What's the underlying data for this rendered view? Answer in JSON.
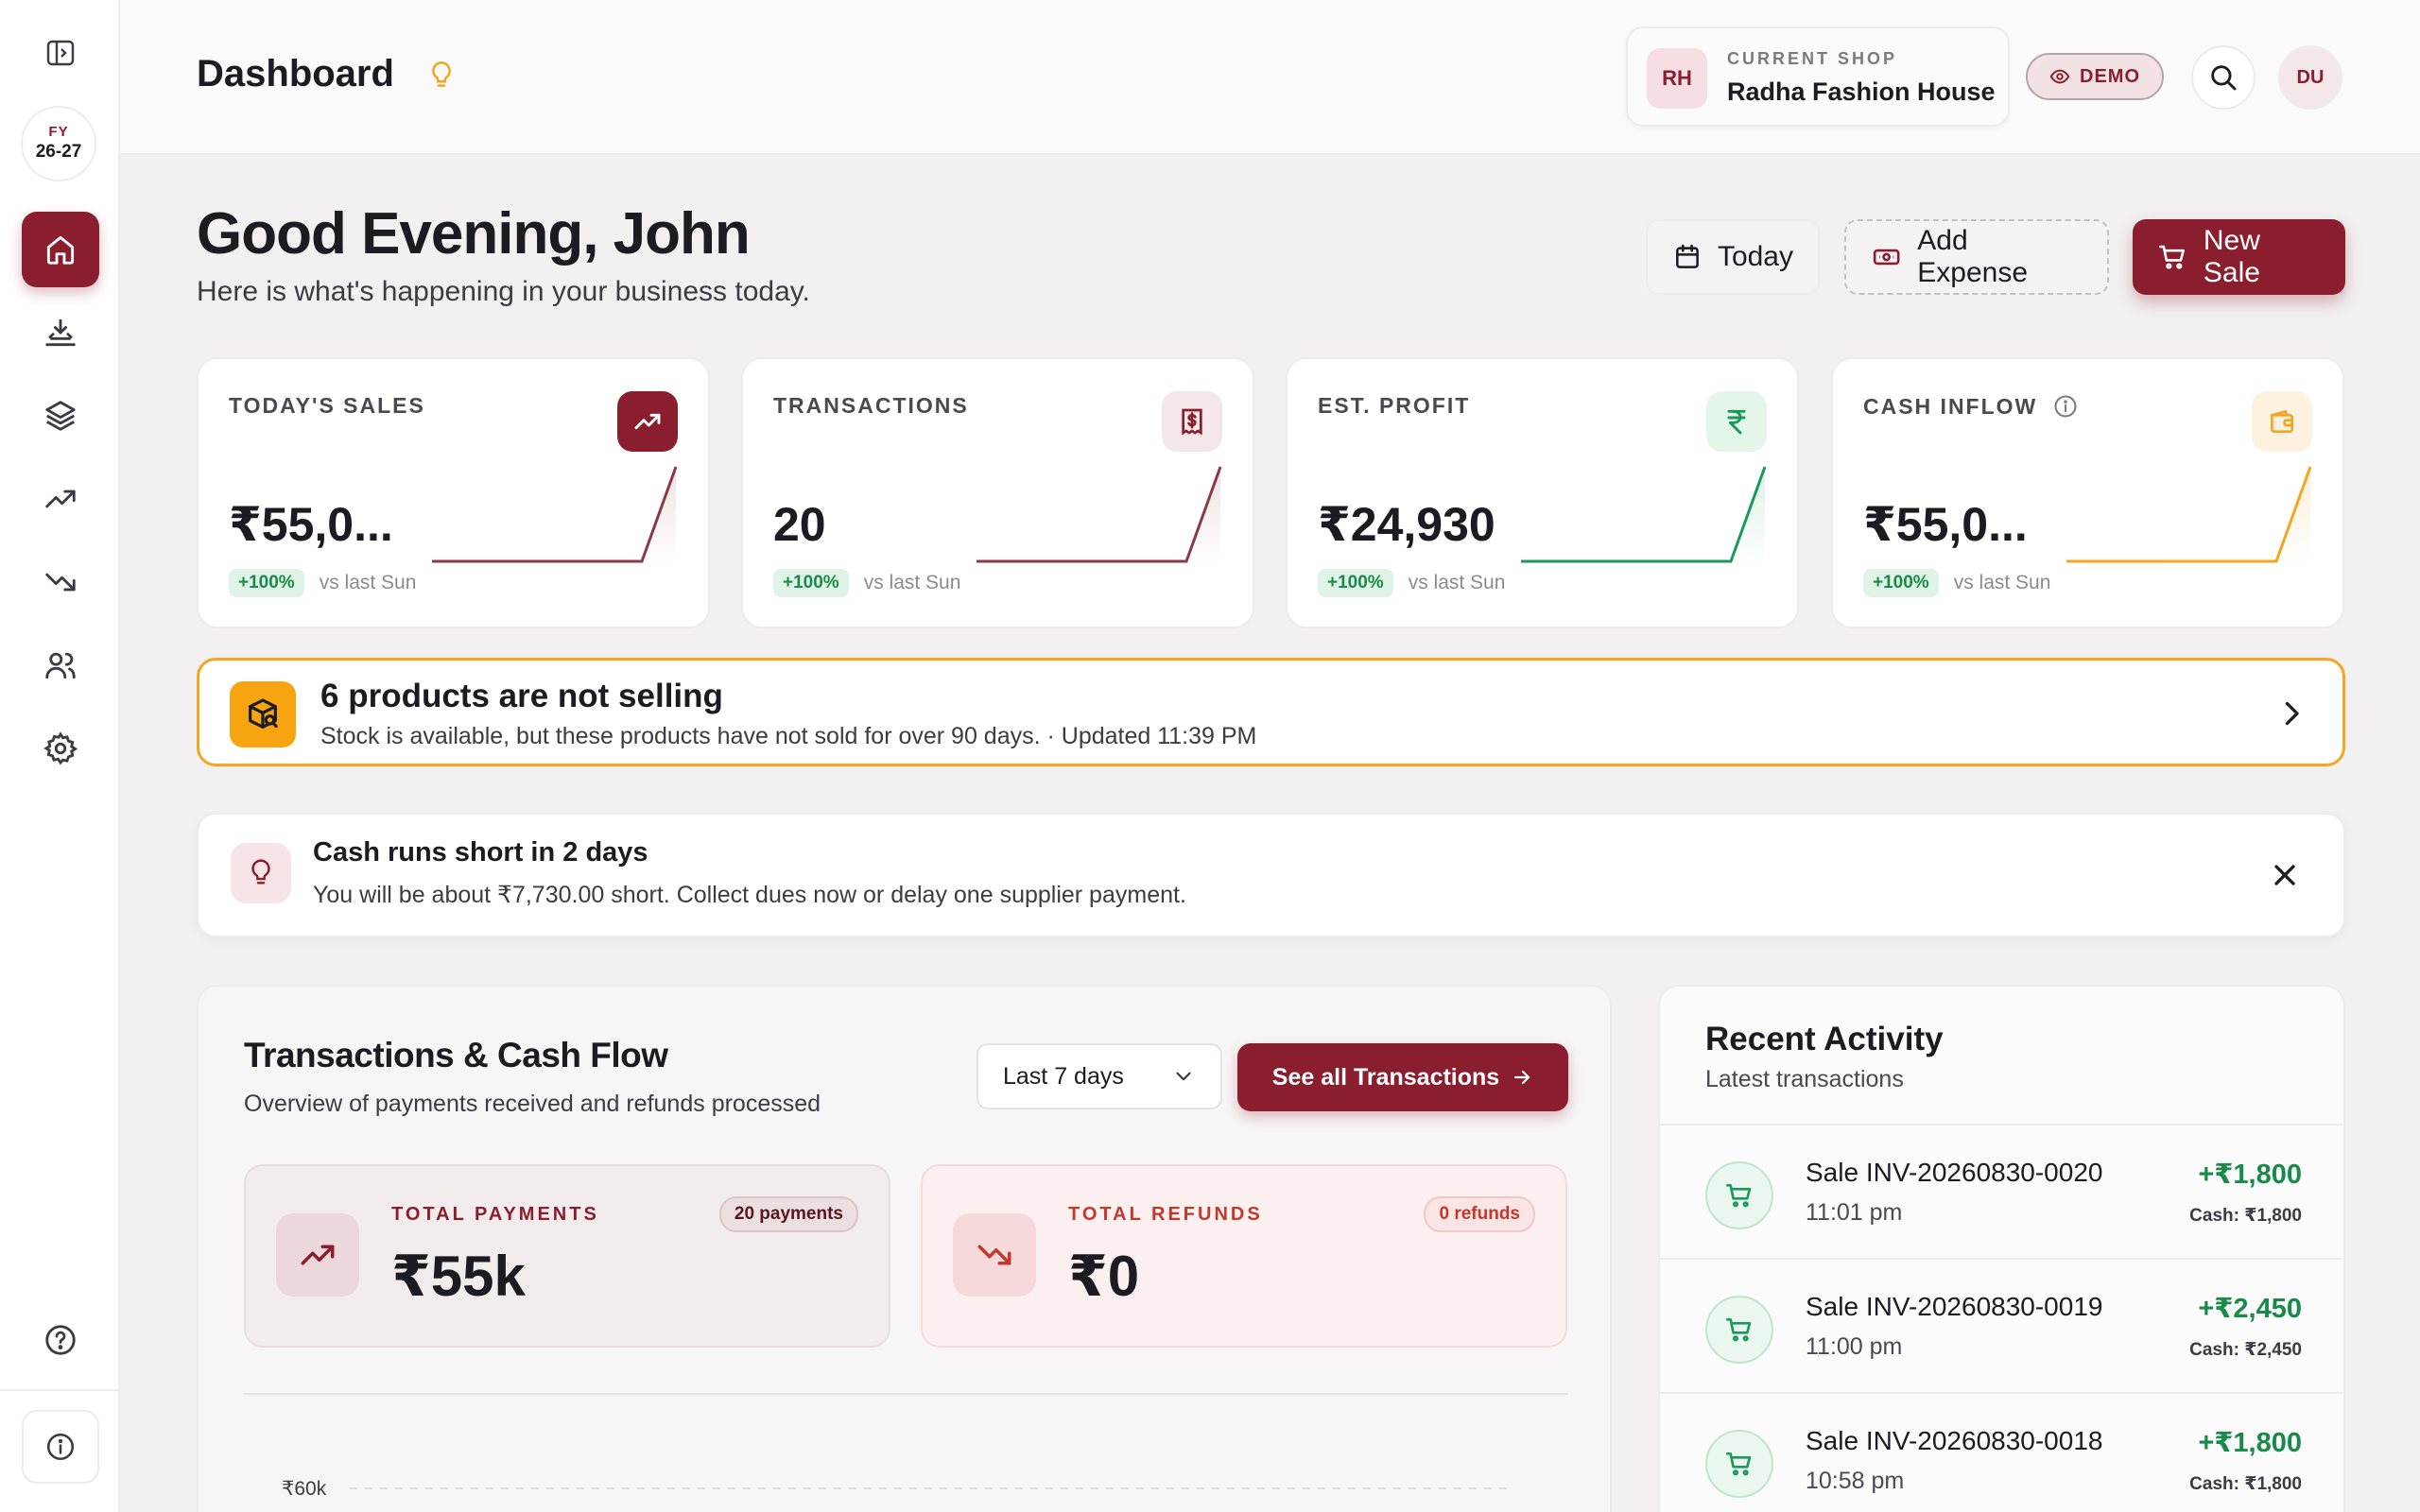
{
  "sidebar": {
    "fy_label": "FY",
    "fy_years": "26-27",
    "items": [
      {
        "name": "home-icon",
        "active": true
      },
      {
        "name": "inflow-icon"
      },
      {
        "name": "layers-icon"
      },
      {
        "name": "trending-up-icon"
      },
      {
        "name": "trending-down-icon"
      },
      {
        "name": "users-icon"
      },
      {
        "name": "gear-icon"
      }
    ]
  },
  "header": {
    "title": "Dashboard",
    "shop": {
      "avatar": "RH",
      "label": "CURRENT SHOP",
      "name": "Radha Fashion House"
    },
    "demo_label": "DEMO",
    "user_avatar": "DU"
  },
  "greeting": {
    "title": "Good Evening, John",
    "subtitle": "Here is what's happening in your business today."
  },
  "actions": {
    "today": "Today",
    "add_expense": "Add Expense",
    "new_sale": "New Sale"
  },
  "kpis": [
    {
      "label": "TODAY'S SALES",
      "value": "₹55,0...",
      "trend": "+100%",
      "compare": "vs last Sun",
      "color": "#8a3a44"
    },
    {
      "label": "TRANSACTIONS",
      "value": "20",
      "trend": "+100%",
      "compare": "vs last Sun",
      "color": "#8a3a44"
    },
    {
      "label": "EST. PROFIT",
      "value": "₹24,930",
      "trend": "+100%",
      "compare": "vs last Sun",
      "color": "#1a9a5a"
    },
    {
      "label": "CASH INFLOW",
      "value": "₹55,0...",
      "trend": "+100%",
      "compare": "vs last Sun",
      "color": "#f4a623"
    }
  ],
  "stock_alert": {
    "title": "6 products are not selling",
    "subtitle": "Stock is available, but these products have not sold for over 90 days. · Updated 11:39 PM"
  },
  "cash_alert": {
    "title": "Cash runs short in 2 days",
    "subtitle": "You will be about ₹7,730.00 short. Collect dues now or delay one supplier payment."
  },
  "transactions": {
    "title": "Transactions & Cash Flow",
    "subtitle": "Overview of payments received and refunds processed",
    "range": "Last 7 days",
    "see_all": "See all Transactions",
    "payments": {
      "label": "TOTAL PAYMENTS",
      "value": "₹55k",
      "badge": "20 payments"
    },
    "refunds": {
      "label": "TOTAL REFUNDS",
      "value": "₹0",
      "badge": "0 refunds"
    },
    "chart_tick": "₹60k"
  },
  "activity": {
    "title": "Recent Activity",
    "subtitle": "Latest transactions",
    "rows": [
      {
        "name": "Sale INV-20260830-0020",
        "time": "11:01 pm",
        "amount": "+₹1,800",
        "cash": "Cash: ₹1,800"
      },
      {
        "name": "Sale INV-20260830-0019",
        "time": "11:00 pm",
        "amount": "+₹2,450",
        "cash": "Cash: ₹2,450"
      },
      {
        "name": "Sale INV-20260830-0018",
        "time": "10:58 pm",
        "amount": "+₹1,800",
        "cash": "Cash: ₹1,800"
      }
    ]
  }
}
